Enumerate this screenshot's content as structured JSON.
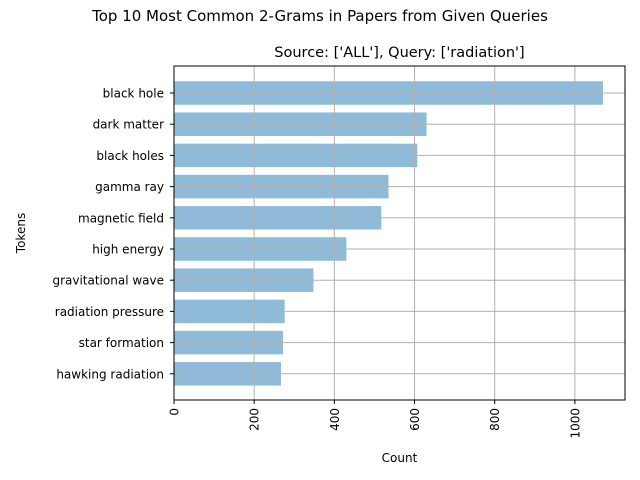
{
  "figure_title": "Top 10 Most Common 2-Grams in Papers from Given Queries",
  "chart_data": {
    "type": "bar",
    "orientation": "horizontal",
    "title": "Source: ['ALL'], Query: ['radiation']",
    "xlabel": "Count",
    "ylabel": "Tokens",
    "categories": [
      "black hole",
      "dark matter",
      "black holes",
      "gamma ray",
      "magnetic field",
      "high energy",
      "gravitational wave",
      "radiation pressure",
      "star formation",
      "hawking radiation"
    ],
    "values": [
      1070,
      630,
      607,
      535,
      517,
      430,
      348,
      276,
      272,
      267
    ],
    "xlim": [
      0,
      1125
    ],
    "xticks": [
      0,
      200,
      400,
      600,
      800,
      1000
    ],
    "grid": true,
    "bar_color": "#8fbbd9",
    "grid_color": "#b0b0b0"
  }
}
